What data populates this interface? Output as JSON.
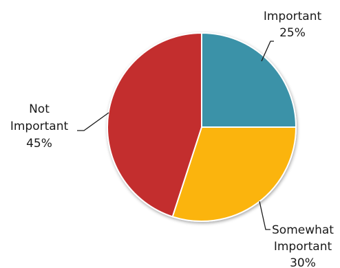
{
  "chart_data": {
    "type": "pie",
    "slices": [
      {
        "label": "Important",
        "value": 25,
        "value_label": "25%",
        "color": "#3a92a8"
      },
      {
        "label": "Somewhat Important",
        "label_lines": [
          "Somewhat",
          "Important"
        ],
        "value": 30,
        "value_label": "30%",
        "color": "#fbb40d"
      },
      {
        "label": "Not Important",
        "label_lines": [
          "Not",
          "Important"
        ],
        "value": 45,
        "value_label": "45%",
        "color": "#c32e2f"
      }
    ],
    "start_angle_deg": 0,
    "direction": "clockwise"
  }
}
